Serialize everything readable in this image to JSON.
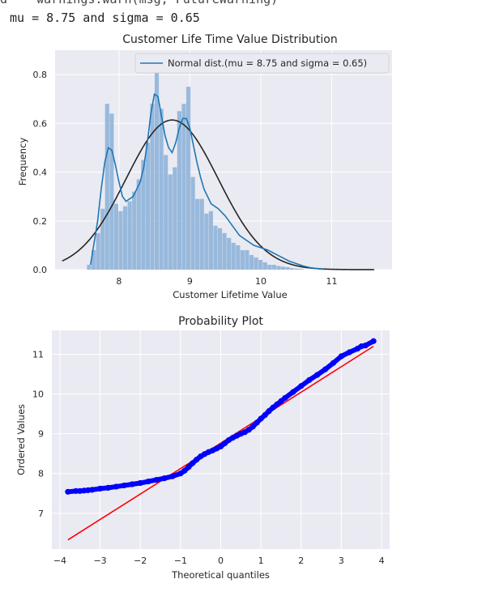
{
  "output": {
    "warning_line": "d    warnings.warn(msg, FutureWarning)",
    "stats_line": "mu = 8.75 and sigma = 0.65"
  },
  "chart_data": [
    {
      "type": "bar",
      "title": "Customer Life Time Value Distribution",
      "xlabel": "Customer Lifetime Value",
      "ylabel": "Frequency",
      "xlim": [
        7.1,
        11.85
      ],
      "ylim": [
        0,
        0.9
      ],
      "xticks": [
        8,
        9,
        10,
        11
      ],
      "yticks": [
        0.0,
        0.2,
        0.4,
        0.6,
        0.8
      ],
      "ytick_labels": [
        "0.0",
        "0.2",
        "0.4",
        "0.6",
        "0.8"
      ],
      "grid": true,
      "legend": {
        "position": "top-right",
        "entries": [
          "Normal dist.(mu = 8.75 and sigma = 0.65)"
        ]
      },
      "histogram": {
        "bin_start": 7.55,
        "bin_width": 0.0636,
        "densities": [
          0.02,
          0.08,
          0.15,
          0.25,
          0.68,
          0.64,
          0.27,
          0.24,
          0.26,
          0.28,
          0.32,
          0.37,
          0.45,
          0.52,
          0.68,
          0.86,
          0.66,
          0.47,
          0.39,
          0.42,
          0.65,
          0.68,
          0.75,
          0.38,
          0.29,
          0.29,
          0.23,
          0.24,
          0.18,
          0.17,
          0.15,
          0.13,
          0.11,
          0.1,
          0.08,
          0.08,
          0.06,
          0.05,
          0.04,
          0.03,
          0.02,
          0.02,
          0.015,
          0.012,
          0.01,
          0.006,
          0.004,
          0.003
        ]
      },
      "kde": {
        "x": [
          7.6,
          7.7,
          7.75,
          7.8,
          7.85,
          7.9,
          7.95,
          8.0,
          8.05,
          8.1,
          8.2,
          8.3,
          8.35,
          8.4,
          8.45,
          8.5,
          8.55,
          8.6,
          8.65,
          8.7,
          8.75,
          8.8,
          8.85,
          8.9,
          8.95,
          9.0,
          9.05,
          9.1,
          9.15,
          9.2,
          9.3,
          9.4,
          9.5,
          9.6,
          9.7,
          9.8,
          9.9,
          10.0,
          10.1,
          10.2,
          10.3,
          10.4,
          10.5,
          10.6,
          10.7,
          10.8,
          10.9
        ],
        "y": [
          0.02,
          0.2,
          0.33,
          0.44,
          0.5,
          0.49,
          0.43,
          0.36,
          0.3,
          0.28,
          0.3,
          0.36,
          0.42,
          0.52,
          0.64,
          0.72,
          0.71,
          0.63,
          0.55,
          0.5,
          0.48,
          0.52,
          0.58,
          0.62,
          0.62,
          0.58,
          0.51,
          0.44,
          0.38,
          0.33,
          0.27,
          0.25,
          0.22,
          0.18,
          0.14,
          0.12,
          0.1,
          0.09,
          0.08,
          0.065,
          0.05,
          0.035,
          0.025,
          0.015,
          0.008,
          0.004,
          0.001
        ]
      },
      "normal_fit": {
        "name": "Normal dist.(mu = 8.75 and sigma = 0.65)",
        "mu": 8.75,
        "sigma": 0.65,
        "x_range": [
          7.2,
          11.6
        ]
      },
      "colors": {
        "hist": "#8fb4d9",
        "kde": "#1f77b4",
        "normal": "#262626",
        "background": "#eaeaf2"
      }
    },
    {
      "type": "scatter",
      "title": "Probability Plot",
      "xlabel": "Theoretical quantiles",
      "ylabel": "Ordered Values",
      "xlim": [
        -4.2,
        4.2
      ],
      "ylim": [
        6.1,
        11.6
      ],
      "xticks": [
        -4,
        -3,
        -2,
        -1,
        0,
        1,
        2,
        3,
        4
      ],
      "xtick_labels": [
        "−4",
        "−3",
        "−2",
        "−1",
        "0",
        "1",
        "2",
        "3",
        "4"
      ],
      "yticks": [
        7,
        8,
        9,
        10,
        11
      ],
      "grid": true,
      "points": {
        "x": [
          -3.8,
          -3.6,
          -3.5,
          -3.4,
          -3.3,
          -3.2,
          -3.0,
          -2.8,
          -2.6,
          -2.4,
          -2.2,
          -2.0,
          -1.8,
          -1.6,
          -1.4,
          -1.2,
          -1.0,
          -0.9,
          -0.8,
          -0.7,
          -0.6,
          -0.5,
          -0.4,
          -0.3,
          -0.2,
          -0.1,
          0.0,
          0.1,
          0.2,
          0.3,
          0.4,
          0.5,
          0.6,
          0.7,
          0.8,
          0.9,
          1.0,
          1.1,
          1.2,
          1.3,
          1.4,
          1.5,
          1.6,
          1.8,
          2.0,
          2.2,
          2.4,
          2.6,
          2.8,
          3.0,
          3.2,
          3.4,
          3.5,
          3.6,
          3.8
        ],
        "y": [
          7.54,
          7.56,
          7.56,
          7.57,
          7.58,
          7.59,
          7.62,
          7.64,
          7.67,
          7.7,
          7.73,
          7.76,
          7.8,
          7.84,
          7.88,
          7.93,
          8.0,
          8.07,
          8.16,
          8.26,
          8.35,
          8.43,
          8.49,
          8.54,
          8.58,
          8.63,
          8.68,
          8.76,
          8.84,
          8.9,
          8.95,
          9.0,
          9.04,
          9.1,
          9.18,
          9.28,
          9.38,
          9.47,
          9.57,
          9.66,
          9.74,
          9.82,
          9.9,
          10.05,
          10.2,
          10.35,
          10.48,
          10.62,
          10.78,
          10.95,
          11.05,
          11.14,
          11.2,
          11.22,
          11.33
        ]
      },
      "fit_line": {
        "x": [
          -3.8,
          3.8
        ],
        "y": [
          6.33,
          11.2
        ]
      },
      "colors": {
        "points": "#0000ff",
        "fit_line": "#ff0000",
        "background": "#eaeaf2"
      }
    }
  ]
}
